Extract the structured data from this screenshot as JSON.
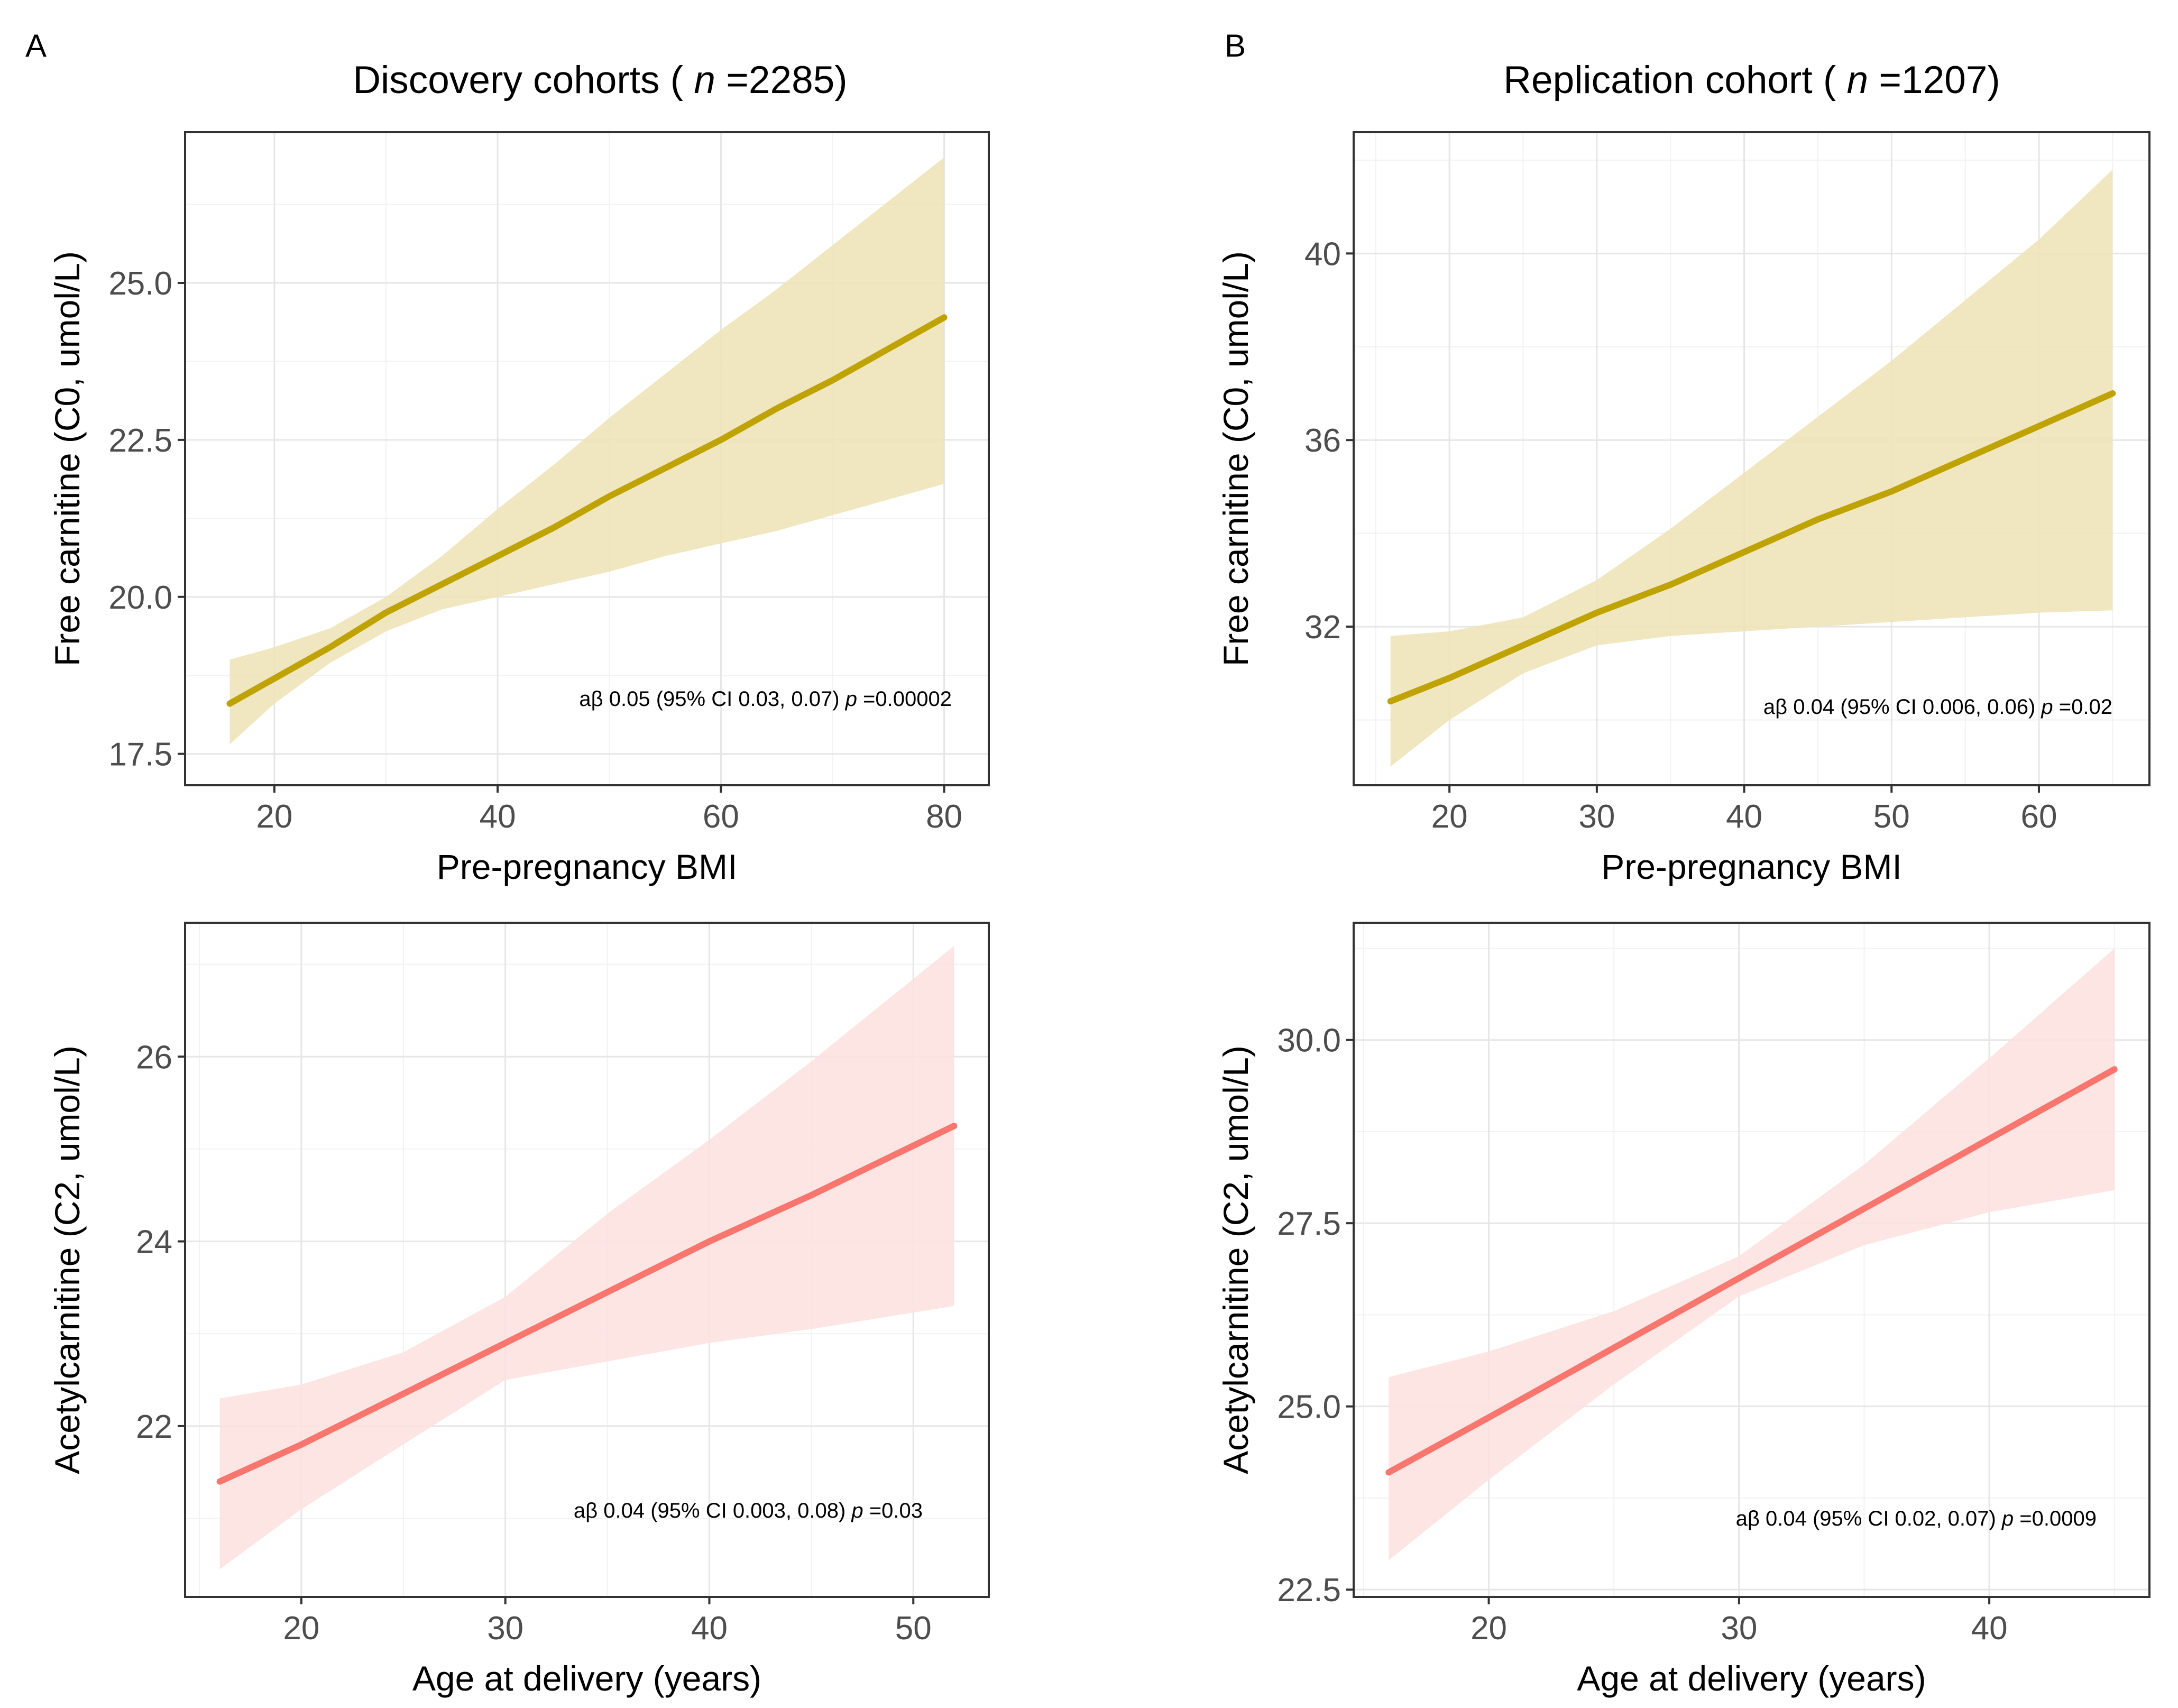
{
  "panels": [
    {
      "letter": "A",
      "title_prefix": "Discovery cohorts ( ",
      "title_n_label": "n",
      "title_suffix": " =2285)"
    },
    {
      "letter": "B",
      "title_prefix": "Replication cohort ( ",
      "title_n_label": "n",
      "title_suffix": " =1207)"
    }
  ],
  "chart_data": [
    {
      "type": "line",
      "title": "Discovery cohorts ( n =2285)",
      "xlabel": "Pre-pregnancy BMI",
      "ylabel": "Free carnitine (C0, umol/L)",
      "xlim": [
        12,
        84
      ],
      "ylim": [
        17.0,
        27.4
      ],
      "xticks": [
        20,
        40,
        60,
        80
      ],
      "yticks": [
        17.5,
        20.0,
        22.5,
        25.0
      ],
      "tick_decimals": 1,
      "color": "#bfa300",
      "band_color": "#ede3b6",
      "annotation": {
        "prefix": "aβ 0.05 (95% CI 0.03, 0.07)  ",
        "p_label": "p",
        "p_value": " =0.00002"
      },
      "series": [
        {
          "name": "fit",
          "x": [
            16,
            20,
            25,
            30,
            35,
            40,
            45,
            50,
            55,
            60,
            65,
            70,
            75,
            80
          ],
          "y": [
            18.3,
            18.7,
            19.2,
            19.75,
            20.2,
            20.65,
            21.1,
            21.6,
            22.05,
            22.5,
            23.0,
            23.45,
            23.95,
            24.45
          ],
          "lower": [
            17.65,
            18.3,
            18.95,
            19.45,
            19.8,
            20.0,
            20.2,
            20.4,
            20.65,
            20.85,
            21.05,
            21.3,
            21.55,
            21.8
          ],
          "upper": [
            19.0,
            19.2,
            19.5,
            20.0,
            20.65,
            21.4,
            22.1,
            22.85,
            23.55,
            24.25,
            24.9,
            25.6,
            26.3,
            27.0
          ]
        }
      ]
    },
    {
      "type": "line",
      "title": "Replication cohort ( n =1207)",
      "xlabel": "Pre-pregnancy BMI",
      "ylabel": "Free carnitine (C0, umol/L)",
      "xlim": [
        13.5,
        67.5
      ],
      "ylim": [
        28.6,
        42.6
      ],
      "xticks": [
        20,
        30,
        40,
        50,
        60
      ],
      "yticks": [
        32,
        36,
        40
      ],
      "tick_decimals": 0,
      "color": "#bfa300",
      "band_color": "#ede3b6",
      "annotation": {
        "prefix": "aβ 0.04 (95% CI 0.006, 0.06)  ",
        "p_label": "p",
        "p_value": " =0.02"
      },
      "series": [
        {
          "name": "fit",
          "x": [
            16,
            20,
            25,
            30,
            35,
            40,
            45,
            50,
            55,
            60,
            65
          ],
          "y": [
            30.4,
            30.9,
            31.6,
            32.3,
            32.9,
            33.6,
            34.3,
            34.9,
            35.6,
            36.3,
            37.0
          ],
          "lower": [
            29.0,
            30.0,
            31.0,
            31.6,
            31.8,
            31.9,
            32.0,
            32.1,
            32.2,
            32.3,
            32.35
          ],
          "upper": [
            31.8,
            31.9,
            32.2,
            33.0,
            34.1,
            35.3,
            36.5,
            37.7,
            39.0,
            40.3,
            41.8
          ]
        }
      ]
    },
    {
      "type": "line",
      "title": "",
      "xlabel": "Age at delivery (years)",
      "ylabel": "Acetylcarnitine (C2, umol/L)",
      "xlim": [
        14.3,
        53.7
      ],
      "ylim": [
        20.15,
        27.45
      ],
      "xticks": [
        20,
        30,
        40,
        50
      ],
      "yticks": [
        22,
        24,
        26
      ],
      "tick_decimals": 0,
      "color": "#f8766d",
      "band_color": "#fde0df",
      "annotation": {
        "prefix": "aβ 0.04 (95% CI 0.003, 0.08)  ",
        "p_label": "p",
        "p_value": " =0.03"
      },
      "series": [
        {
          "name": "fit",
          "x": [
            16,
            20,
            25,
            30,
            35,
            40,
            45,
            52
          ],
          "y": [
            21.4,
            21.8,
            22.35,
            22.9,
            23.45,
            24.0,
            24.5,
            25.25
          ],
          "lower": [
            20.45,
            21.1,
            21.8,
            22.5,
            22.7,
            22.9,
            23.05,
            23.3
          ],
          "upper": [
            22.3,
            22.45,
            22.8,
            23.4,
            24.3,
            25.1,
            25.95,
            27.2
          ]
        }
      ]
    },
    {
      "type": "line",
      "title": "",
      "xlabel": "Age at delivery (years)",
      "ylabel": "Acetylcarnitine (C2, umol/L)",
      "xlim": [
        14.6,
        46.4
      ],
      "ylim": [
        22.4,
        31.6
      ],
      "xticks": [
        20,
        30,
        40
      ],
      "yticks": [
        22.5,
        25.0,
        27.5,
        30.0
      ],
      "tick_decimals": 1,
      "color": "#f8766d",
      "band_color": "#fde0df",
      "annotation": {
        "prefix": "aβ 0.04 (95% CI 0.02, 0.07)  ",
        "p_label": "p",
        "p_value": " =0.0009"
      },
      "series": [
        {
          "name": "fit",
          "x": [
            16,
            20,
            25,
            30,
            35,
            40,
            45
          ],
          "y": [
            24.1,
            24.85,
            25.8,
            26.75,
            27.7,
            28.65,
            29.6
          ],
          "lower": [
            22.9,
            24.0,
            25.3,
            26.5,
            27.2,
            27.65,
            27.95
          ],
          "upper": [
            25.4,
            25.75,
            26.3,
            27.05,
            28.3,
            29.75,
            31.25
          ]
        }
      ]
    }
  ]
}
